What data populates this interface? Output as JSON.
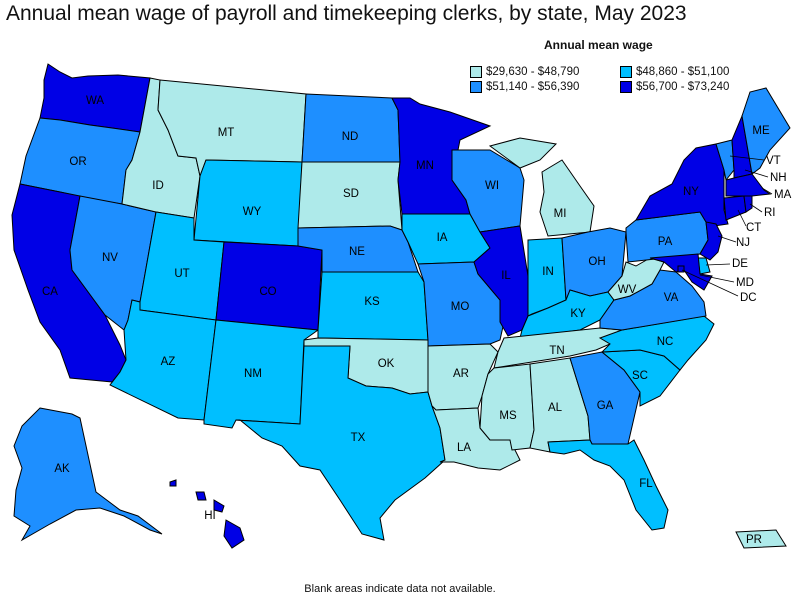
{
  "title": "Annual mean wage of payroll and timekeeping clerks, by state, May 2023",
  "footnote": "Blank areas indicate data not available.",
  "legend": {
    "title": "Annual mean wage",
    "items": [
      {
        "label": "$29,630 - $48,790",
        "color": "#aeeaea"
      },
      {
        "label": "$48,860 - $51,100",
        "color": "#00bfff"
      },
      {
        "label": "$51,140 - $56,390",
        "color": "#1e8fff"
      },
      {
        "label": "$56,700 - $73,240",
        "color": "#0000e6"
      }
    ]
  },
  "states": {
    "WA": {
      "label": "WA",
      "bin": 3
    },
    "OR": {
      "label": "OR",
      "bin": 2
    },
    "CA": {
      "label": "CA",
      "bin": 3
    },
    "NV": {
      "label": "NV",
      "bin": 2
    },
    "ID": {
      "label": "ID",
      "bin": 0
    },
    "MT": {
      "label": "MT",
      "bin": 0
    },
    "WY": {
      "label": "WY",
      "bin": 1
    },
    "UT": {
      "label": "UT",
      "bin": 1
    },
    "AZ": {
      "label": "AZ",
      "bin": 1
    },
    "CO": {
      "label": "CO",
      "bin": 3
    },
    "NM": {
      "label": "NM",
      "bin": 1
    },
    "ND": {
      "label": "ND",
      "bin": 2
    },
    "SD": {
      "label": "SD",
      "bin": 0
    },
    "NE": {
      "label": "NE",
      "bin": 2
    },
    "KS": {
      "label": "KS",
      "bin": 1
    },
    "OK": {
      "label": "OK",
      "bin": 0
    },
    "TX": {
      "label": "TX",
      "bin": 1
    },
    "MN": {
      "label": "MN",
      "bin": 3
    },
    "IA": {
      "label": "IA",
      "bin": 1
    },
    "MO": {
      "label": "MO",
      "bin": 2
    },
    "AR": {
      "label": "AR",
      "bin": 0
    },
    "LA": {
      "label": "LA",
      "bin": 0
    },
    "WI": {
      "label": "WI",
      "bin": 2
    },
    "IL": {
      "label": "IL",
      "bin": 3
    },
    "MI": {
      "label": "MI",
      "bin": 0
    },
    "IN": {
      "label": "IN",
      "bin": 1
    },
    "OH": {
      "label": "OH",
      "bin": 2
    },
    "KY": {
      "label": "KY",
      "bin": 1
    },
    "TN": {
      "label": "TN",
      "bin": 0
    },
    "MS": {
      "label": "MS",
      "bin": 0
    },
    "AL": {
      "label": "AL",
      "bin": 0
    },
    "GA": {
      "label": "GA",
      "bin": 2
    },
    "FL": {
      "label": "FL",
      "bin": 1
    },
    "SC": {
      "label": "SC",
      "bin": 1
    },
    "NC": {
      "label": "NC",
      "bin": 1
    },
    "VA": {
      "label": "VA",
      "bin": 2
    },
    "WV": {
      "label": "WV",
      "bin": 0
    },
    "PA": {
      "label": "PA",
      "bin": 2
    },
    "NY": {
      "label": "NY",
      "bin": 3
    },
    "VT": {
      "label": "VT",
      "bin": 2
    },
    "NH": {
      "label": "NH",
      "bin": 3
    },
    "ME": {
      "label": "ME",
      "bin": 2
    },
    "MA": {
      "label": "MA",
      "bin": 3
    },
    "RI": {
      "label": "RI",
      "bin": 3
    },
    "CT": {
      "label": "CT",
      "bin": 3
    },
    "NJ": {
      "label": "NJ",
      "bin": 3
    },
    "DE": {
      "label": "DE",
      "bin": 1
    },
    "MD": {
      "label": "MD",
      "bin": 3
    },
    "DC": {
      "label": "DC",
      "bin": 3
    },
    "AK": {
      "label": "AK",
      "bin": 2
    },
    "HI": {
      "label": "HI",
      "bin": 3
    },
    "PR": {
      "label": "PR",
      "bin": 0
    }
  }
}
